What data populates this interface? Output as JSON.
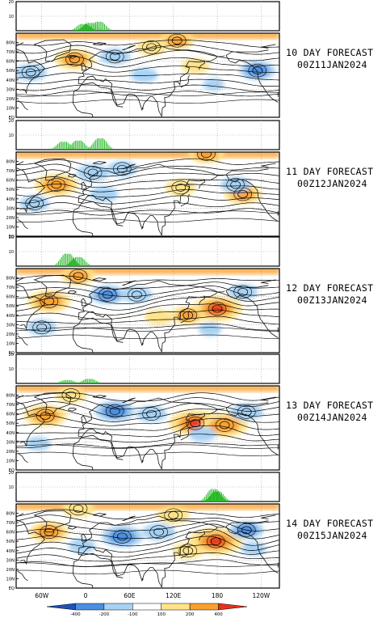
{
  "chart_data": {
    "type": "panel-sequence",
    "panels": [
      {
        "forecast_label": "10 DAY FORECAST",
        "valid_time": "00Z11JAN2024",
        "index_peaks": [
          {
            "lon": -3,
            "value": 6
          },
          {
            "lon": 6,
            "value": 7
          },
          {
            "lon": 18,
            "value": 8
          }
        ],
        "anomaly_centers": [
          {
            "lon": -15,
            "lat": 62,
            "value": 260
          },
          {
            "lon": 90,
            "lat": 75,
            "value": 160
          },
          {
            "lon": 125,
            "lat": 82,
            "value": 200
          },
          {
            "lon": 40,
            "lat": 65,
            "value": -160
          },
          {
            "lon": 80,
            "lat": 45,
            "value": -120
          },
          {
            "lon": 150,
            "lat": 55,
            "value": 140
          },
          {
            "lon": -125,
            "lat": 50,
            "value": -220
          },
          {
            "lon": -75,
            "lat": 48,
            "value": -180
          },
          {
            "lon": 175,
            "lat": 35,
            "value": -60
          }
        ]
      },
      {
        "forecast_label": "11 DAY FORECAST",
        "valid_time": "00Z12JAN2024",
        "index_peaks": [
          {
            "lon": -30,
            "value": 7
          },
          {
            "lon": -10,
            "value": 8
          },
          {
            "lon": 20,
            "value": 10
          }
        ],
        "anomaly_centers": [
          {
            "lon": -40,
            "lat": 55,
            "value": 300
          },
          {
            "lon": 165,
            "lat": 88,
            "value": 220
          },
          {
            "lon": 10,
            "lat": 68,
            "value": -180
          },
          {
            "lon": 50,
            "lat": 72,
            "value": -150
          },
          {
            "lon": 130,
            "lat": 52,
            "value": 160
          },
          {
            "lon": -145,
            "lat": 45,
            "value": 240
          },
          {
            "lon": -155,
            "lat": 55,
            "value": -160
          },
          {
            "lon": -70,
            "lat": 35,
            "value": -150
          },
          {
            "lon": 25,
            "lat": 45,
            "value": -140
          }
        ]
      },
      {
        "forecast_label": "12 DAY FORECAST",
        "valid_time": "00Z13JAN2024",
        "index_peaks": [
          {
            "lon": -25,
            "value": 11
          },
          {
            "lon": -10,
            "value": 8
          }
        ],
        "anomaly_centers": [
          {
            "lon": -50,
            "lat": 55,
            "value": 300
          },
          {
            "lon": -10,
            "lat": 82,
            "value": 200
          },
          {
            "lon": 30,
            "lat": 62,
            "value": -220
          },
          {
            "lon": 70,
            "lat": 62,
            "value": -160
          },
          {
            "lon": 180,
            "lat": 47,
            "value": 380
          },
          {
            "lon": 140,
            "lat": 40,
            "value": 200
          },
          {
            "lon": 100,
            "lat": 38,
            "value": 140
          },
          {
            "lon": -145,
            "lat": 65,
            "value": -150
          },
          {
            "lon": -60,
            "lat": 27,
            "value": -150
          },
          {
            "lon": 170,
            "lat": 25,
            "value": -80
          }
        ]
      },
      {
        "forecast_label": "13 DAY FORECAST",
        "valid_time": "00Z14JAN2024",
        "index_peaks": [
          {
            "lon": -25,
            "value": 3
          },
          {
            "lon": 5,
            "value": 4
          }
        ],
        "anomaly_centers": [
          {
            "lon": -55,
            "lat": 58,
            "value": 300
          },
          {
            "lon": 150,
            "lat": 50,
            "value": 400
          },
          {
            "lon": -170,
            "lat": 48,
            "value": 340
          },
          {
            "lon": -20,
            "lat": 80,
            "value": 160
          },
          {
            "lon": 40,
            "lat": 63,
            "value": -260
          },
          {
            "lon": 90,
            "lat": 60,
            "value": -160
          },
          {
            "lon": -140,
            "lat": 62,
            "value": -180
          },
          {
            "lon": 160,
            "lat": 38,
            "value": -120
          },
          {
            "lon": -65,
            "lat": 28,
            "value": -100
          }
        ]
      },
      {
        "forecast_label": "14 DAY FORECAST",
        "valid_time": "00Z15JAN2024",
        "index_peaks": [
          {
            "lon": 175,
            "value": 11
          },
          {
            "lon": 180,
            "value": 9
          }
        ],
        "anomaly_centers": [
          {
            "lon": 178,
            "lat": 50,
            "value": 420
          },
          {
            "lon": -50,
            "lat": 60,
            "value": 260
          },
          {
            "lon": -10,
            "lat": 85,
            "value": 180
          },
          {
            "lon": 120,
            "lat": 78,
            "value": 180
          },
          {
            "lon": 50,
            "lat": 55,
            "value": -280
          },
          {
            "lon": 100,
            "lat": 60,
            "value": -180
          },
          {
            "lon": -140,
            "lat": 62,
            "value": -200
          },
          {
            "lon": 140,
            "lat": 40,
            "value": 160
          },
          {
            "lon": -5,
            "lat": 45,
            "value": -120
          },
          {
            "lon": -130,
            "lat": 42,
            "value": -100
          }
        ]
      }
    ],
    "x_ticks": [
      "60W",
      "0",
      "60E",
      "120E",
      "180",
      "120W"
    ],
    "lat_ticks": [
      "80N",
      "70N",
      "60N",
      "50N",
      "40N",
      "30N",
      "20N",
      "10N",
      "EQ"
    ],
    "index_yticks": [
      "10",
      "20"
    ],
    "index_ylim": [
      0,
      20
    ],
    "colorbar": {
      "ticks": [
        "-400",
        "-200",
        "-100",
        "100",
        "200",
        "400"
      ],
      "bins": [
        {
          "lo": -500,
          "hi": -400,
          "color": "#1f51b8"
        },
        {
          "lo": -400,
          "hi": -200,
          "color": "#4a8fe0"
        },
        {
          "lo": -200,
          "hi": -100,
          "color": "#a6d2f5"
        },
        {
          "lo": -100,
          "hi": 100,
          "color": "#ffffff"
        },
        {
          "lo": 100,
          "hi": 200,
          "color": "#ffe38a"
        },
        {
          "lo": 200,
          "hi": 400,
          "color": "#f9a12d"
        },
        {
          "lo": 400,
          "hi": 500,
          "color": "#e8301c"
        }
      ]
    }
  }
}
